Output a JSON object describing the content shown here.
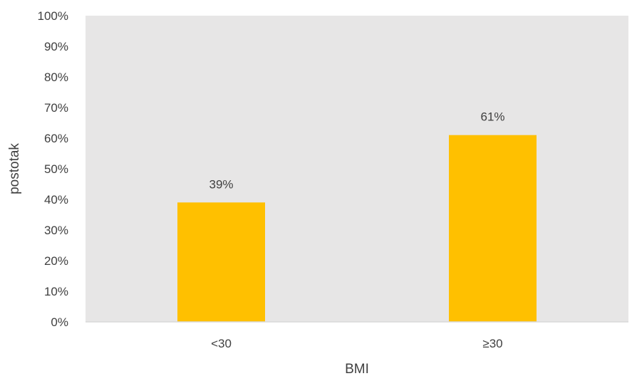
{
  "chart_data": {
    "type": "bar",
    "categories": [
      "<30",
      "≥30"
    ],
    "values": [
      39,
      61
    ],
    "data_labels": [
      "39%",
      "61%"
    ],
    "xlabel": "BMI",
    "ylabel": "postotak",
    "ylim": [
      0,
      100
    ],
    "y_ticks": [
      "0%",
      "10%",
      "20%",
      "30%",
      "40%",
      "50%",
      "60%",
      "70%",
      "80%",
      "90%",
      "100%"
    ],
    "grid": false,
    "legend": "none",
    "colors": {
      "bar": "#ffc000",
      "plot_background": "#e7e6e6",
      "axis_line": "#d9d9d9",
      "text": "#404040"
    }
  }
}
